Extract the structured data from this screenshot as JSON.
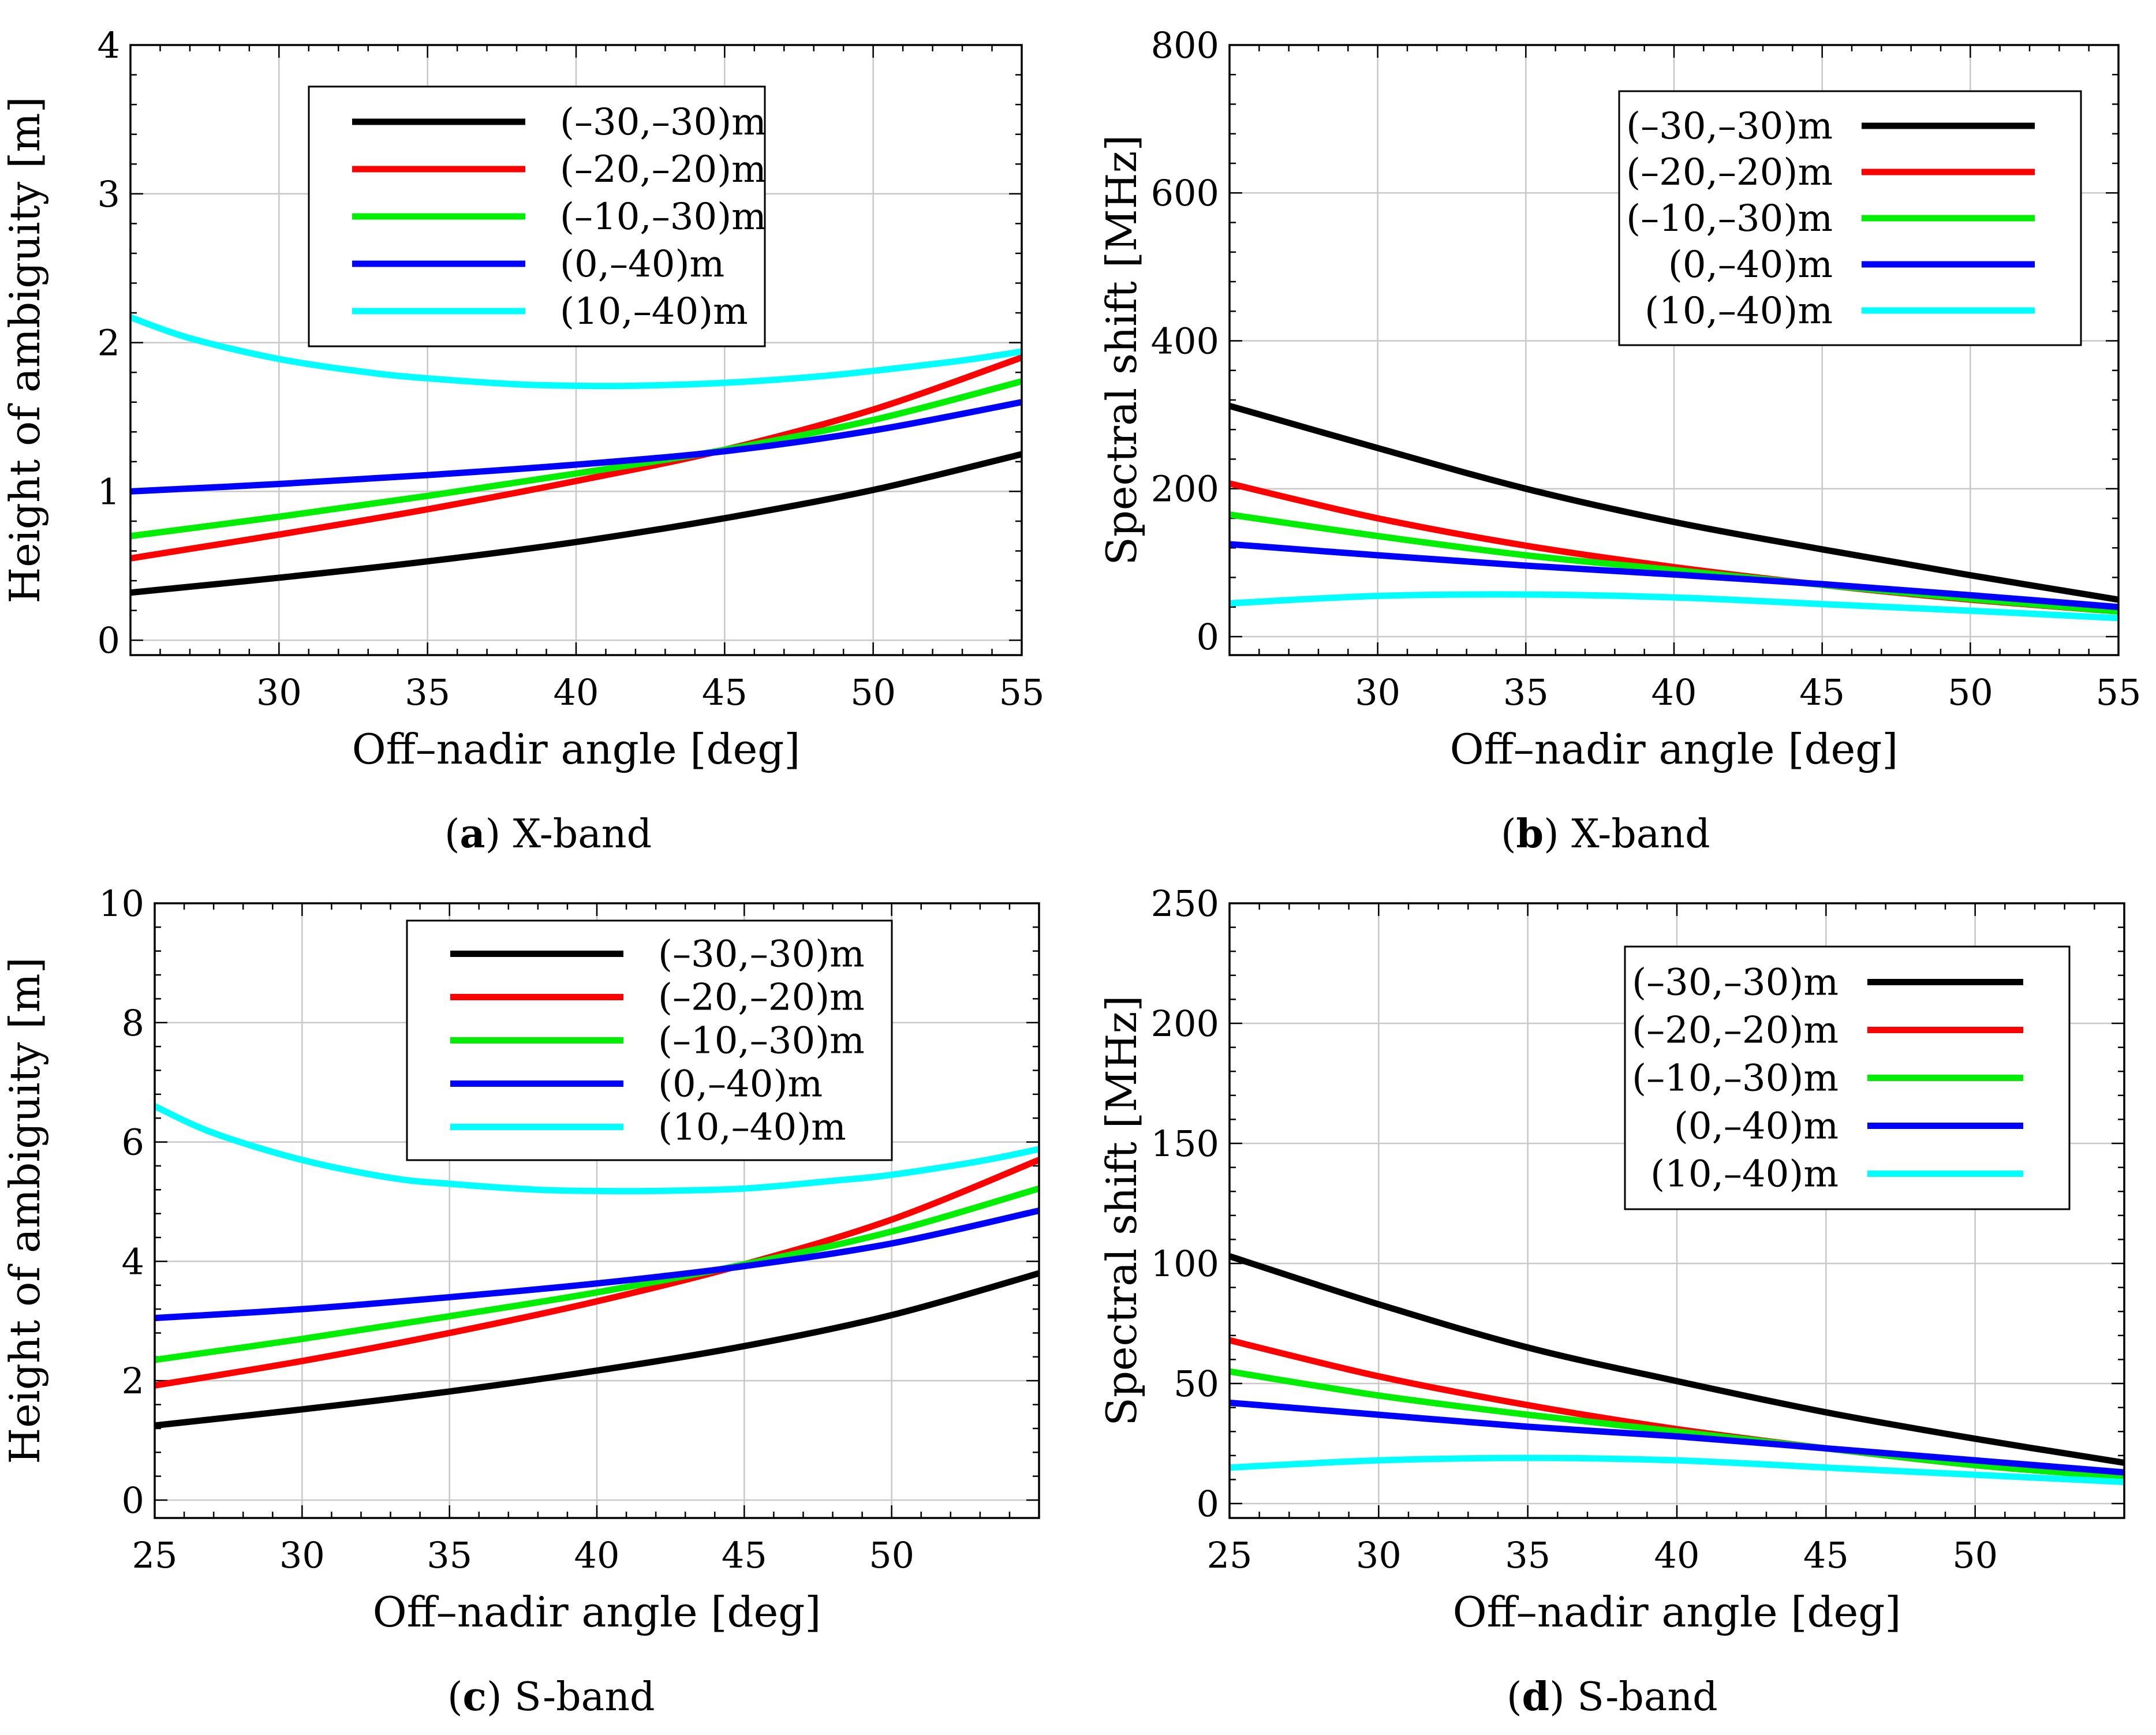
{
  "chart_data": [
    {
      "id": "a",
      "type": "line",
      "caption_letter": "a",
      "caption_text": "X-band",
      "xlabel": "Off–nadir angle [deg]",
      "ylabel": "Height of ambiguity [m]",
      "xlim": [
        25,
        55
      ],
      "ylim": [
        -0.1,
        4
      ],
      "xticks": [
        30,
        35,
        40,
        45,
        50,
        55
      ],
      "yticks": [
        0,
        1,
        2,
        3,
        4
      ],
      "grid": true,
      "legend_position": "top-center",
      "series": [
        {
          "name": "(–30,–30)m",
          "color": "#000000",
          "x": [
            25,
            30,
            35,
            40,
            45,
            50,
            55
          ],
          "y": [
            0.32,
            0.42,
            0.53,
            0.66,
            0.82,
            1.01,
            1.25
          ]
        },
        {
          "name": "(–20,–20)m",
          "color": "#ff0000",
          "x": [
            25,
            30,
            35,
            40,
            45,
            50,
            55
          ],
          "y": [
            0.55,
            0.71,
            0.88,
            1.07,
            1.28,
            1.55,
            1.9
          ]
        },
        {
          "name": "(–10,–30)m",
          "color": "#00ee00",
          "x": [
            25,
            30,
            35,
            40,
            45,
            50,
            55
          ],
          "y": [
            0.7,
            0.83,
            0.97,
            1.12,
            1.28,
            1.48,
            1.74
          ]
        },
        {
          "name": "(0,–40)m",
          "color": "#0000ff",
          "x": [
            25,
            30,
            35,
            40,
            45,
            50,
            55
          ],
          "y": [
            1.0,
            1.05,
            1.11,
            1.18,
            1.27,
            1.41,
            1.6
          ]
        },
        {
          "name": "(10,–40)m",
          "color": "#00ffff",
          "x": [
            25,
            27,
            30,
            33,
            35,
            38,
            40,
            42,
            45,
            48,
            50,
            53,
            55
          ],
          "y": [
            2.17,
            2.03,
            1.89,
            1.8,
            1.76,
            1.72,
            1.71,
            1.71,
            1.73,
            1.77,
            1.81,
            1.88,
            1.94
          ]
        }
      ]
    },
    {
      "id": "b",
      "type": "line",
      "caption_letter": "b",
      "caption_text": "X-band",
      "xlabel": "Off–nadir angle [deg]",
      "ylabel": "Spectral shift [MHz]",
      "xlim": [
        25,
        55
      ],
      "ylim": [
        -25,
        800
      ],
      "xticks": [
        30,
        35,
        40,
        45,
        50,
        55
      ],
      "yticks": [
        0,
        200,
        400,
        600,
        800
      ],
      "grid": true,
      "legend_position": "top-right",
      "series": [
        {
          "name": "(–30,–30)m",
          "color": "#000000",
          "x": [
            25,
            30,
            35,
            40,
            45,
            50,
            55
          ],
          "y": [
            312,
            255,
            200,
            155,
            118,
            83,
            50
          ]
        },
        {
          "name": "(–20,–20)m",
          "color": "#ff0000",
          "x": [
            25,
            30,
            35,
            40,
            45,
            50,
            55
          ],
          "y": [
            207,
            160,
            123,
            94,
            70,
            50,
            34
          ]
        },
        {
          "name": "(–10,–30)m",
          "color": "#00ee00",
          "x": [
            25,
            30,
            35,
            40,
            45,
            50,
            55
          ],
          "y": [
            165,
            136,
            110,
            90,
            70,
            51,
            34
          ]
        },
        {
          "name": "(0,–40)m",
          "color": "#0000ff",
          "x": [
            25,
            30,
            35,
            40,
            45,
            50,
            55
          ],
          "y": [
            125,
            110,
            96,
            84,
            71,
            56,
            40
          ]
        },
        {
          "name": "(10,–40)m",
          "color": "#00ffff",
          "x": [
            25,
            30,
            35,
            40,
            45,
            50,
            55
          ],
          "y": [
            45,
            55,
            57,
            53,
            44,
            35,
            25
          ]
        }
      ]
    },
    {
      "id": "c",
      "type": "line",
      "caption_letter": "c",
      "caption_text": "S-band",
      "xlabel": "Off–nadir angle [deg]",
      "ylabel": "Height of ambiguity [m]",
      "xlim": [
        25,
        55
      ],
      "ylim": [
        -0.3,
        10
      ],
      "xticks": [
        25,
        30,
        35,
        40,
        45,
        50
      ],
      "yticks": [
        0,
        2,
        4,
        6,
        8,
        10
      ],
      "grid": true,
      "legend_position": "top-center",
      "series": [
        {
          "name": "(–30,–30)m",
          "color": "#000000",
          "x": [
            25,
            30,
            35,
            40,
            45,
            50,
            55
          ],
          "y": [
            1.25,
            1.52,
            1.82,
            2.17,
            2.58,
            3.1,
            3.8
          ]
        },
        {
          "name": "(–20,–20)m",
          "color": "#ff0000",
          "x": [
            25,
            30,
            35,
            40,
            45,
            50,
            55
          ],
          "y": [
            1.92,
            2.33,
            2.8,
            3.33,
            3.95,
            4.7,
            5.7
          ]
        },
        {
          "name": "(–10,–30)m",
          "color": "#00ee00",
          "x": [
            25,
            30,
            35,
            40,
            45,
            50,
            55
          ],
          "y": [
            2.35,
            2.7,
            3.08,
            3.48,
            3.95,
            4.5,
            5.22
          ]
        },
        {
          "name": "(0,–40)m",
          "color": "#0000ff",
          "x": [
            25,
            30,
            35,
            40,
            45,
            50,
            55
          ],
          "y": [
            3.05,
            3.2,
            3.4,
            3.63,
            3.92,
            4.3,
            4.85
          ]
        },
        {
          "name": "(10,–40)m",
          "color": "#00ffff",
          "x": [
            25,
            27,
            30,
            33,
            35,
            38,
            40,
            42,
            45,
            48,
            50,
            53,
            55
          ],
          "y": [
            6.6,
            6.15,
            5.7,
            5.4,
            5.3,
            5.2,
            5.18,
            5.18,
            5.22,
            5.35,
            5.45,
            5.68,
            5.88
          ]
        }
      ]
    },
    {
      "id": "d",
      "type": "line",
      "caption_letter": "d",
      "caption_text": "S-band",
      "xlabel": "Off–nadir angle [deg]",
      "ylabel": "Spectral shift [MHz]",
      "xlim": [
        25,
        55
      ],
      "ylim": [
        -6,
        250
      ],
      "xticks": [
        25,
        30,
        35,
        40,
        45,
        50
      ],
      "yticks": [
        0,
        50,
        100,
        150,
        200,
        250
      ],
      "grid": true,
      "legend_position": "top-right",
      "series": [
        {
          "name": "(–30,–30)m",
          "color": "#000000",
          "x": [
            25,
            30,
            35,
            40,
            45,
            50,
            55
          ],
          "y": [
            103,
            83,
            65,
            51,
            38,
            27,
            17
          ]
        },
        {
          "name": "(–20,–20)m",
          "color": "#ff0000",
          "x": [
            25,
            30,
            35,
            40,
            45,
            50,
            55
          ],
          "y": [
            68,
            53,
            41,
            31,
            23,
            16,
            11
          ]
        },
        {
          "name": "(–10,–30)m",
          "color": "#00ee00",
          "x": [
            25,
            30,
            35,
            40,
            45,
            50,
            55
          ],
          "y": [
            55,
            45,
            37,
            30,
            23,
            16,
            11
          ]
        },
        {
          "name": "(0,–40)m",
          "color": "#0000ff",
          "x": [
            25,
            30,
            35,
            40,
            45,
            50,
            55
          ],
          "y": [
            42,
            37,
            32,
            28,
            23,
            18,
            13
          ]
        },
        {
          "name": "(10,–40)m",
          "color": "#00ffff",
          "x": [
            25,
            30,
            35,
            40,
            45,
            50,
            55
          ],
          "y": [
            15,
            18,
            19,
            18,
            15,
            12,
            9
          ]
        }
      ]
    }
  ]
}
